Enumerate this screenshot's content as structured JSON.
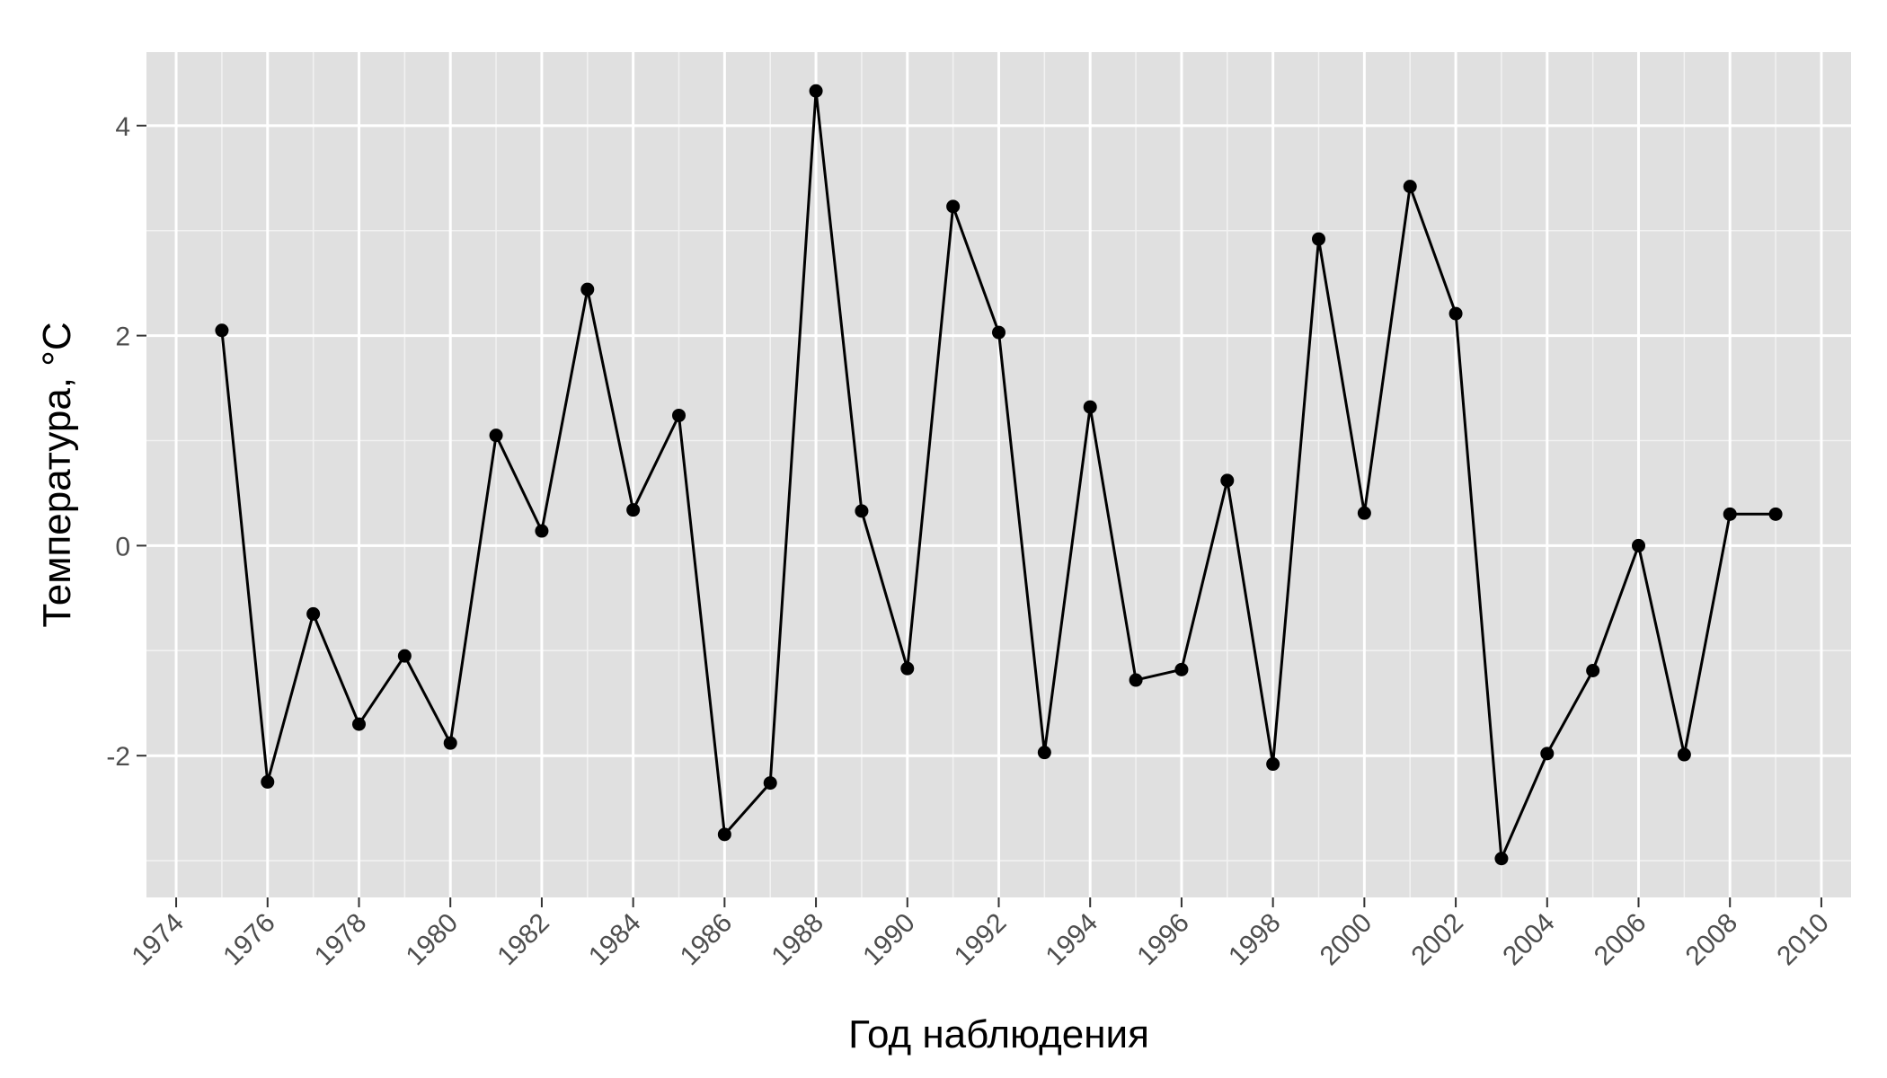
{
  "chart_data": {
    "type": "line",
    "xlabel": "Год наблюдения",
    "ylabel": "Температура, °C",
    "xlim": [
      1973.35,
      2010.65
    ],
    "ylim": [
      -3.35,
      4.7
    ],
    "x_ticks": [
      1974,
      1976,
      1978,
      1980,
      1982,
      1984,
      1986,
      1988,
      1990,
      1992,
      1994,
      1996,
      1998,
      2000,
      2002,
      2004,
      2006,
      2008,
      2010
    ],
    "y_ticks": [
      -2,
      0,
      2,
      4
    ],
    "grid": true,
    "series": [
      {
        "x": [
          1975,
          1976,
          1977,
          1978,
          1979,
          1980,
          1981,
          1982,
          1983,
          1984,
          1985,
          1986,
          1987,
          1988,
          1989,
          1990,
          1991,
          1992,
          1993,
          1994,
          1995,
          1996,
          1997,
          1998,
          1999,
          2000,
          2001,
          2002,
          2003,
          2004,
          2005,
          2006,
          2007,
          2008,
          2009
        ],
        "values": [
          2.05,
          -2.25,
          -0.65,
          -1.7,
          -1.05,
          -1.88,
          1.05,
          0.14,
          2.44,
          0.34,
          1.24,
          -2.75,
          -2.26,
          4.33,
          0.33,
          -1.17,
          3.23,
          2.03,
          -1.97,
          1.32,
          -1.28,
          -1.18,
          0.62,
          -2.08,
          2.92,
          0.31,
          3.42,
          2.21,
          -2.98,
          -1.98,
          -1.19,
          0.0,
          -1.99,
          0.3,
          0.3
        ]
      }
    ],
    "colors": {
      "panel": "#e0e0e0",
      "grid": "#ffffff",
      "line": "#000000",
      "point": "#000000"
    }
  }
}
